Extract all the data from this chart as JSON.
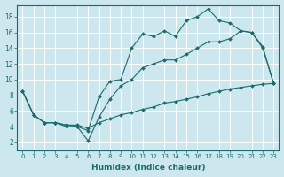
{
  "xlabel": "Humidex (Indice chaleur)",
  "xlim": [
    -0.5,
    23.5
  ],
  "ylim": [
    1,
    19.5
  ],
  "xticks": [
    0,
    1,
    2,
    3,
    4,
    5,
    6,
    7,
    8,
    9,
    10,
    11,
    12,
    13,
    14,
    15,
    16,
    17,
    18,
    19,
    20,
    21,
    22,
    23
  ],
  "yticks": [
    2,
    4,
    6,
    8,
    10,
    12,
    14,
    16,
    18
  ],
  "background_color": "#cce8ee",
  "grid_color": "#ffffff",
  "line_color": "#1a6b6b",
  "curves": [
    {
      "x": [
        0,
        1,
        2,
        3,
        4,
        5,
        6,
        7,
        8,
        9,
        10,
        11,
        12,
        13,
        14,
        15,
        16,
        17,
        18,
        19,
        20,
        21,
        22,
        23
      ],
      "y": [
        8.5,
        5.5,
        4.5,
        4.5,
        4.0,
        4.0,
        3.5,
        7.8,
        9.8,
        10.0,
        14.0,
        15.8,
        15.5,
        16.2,
        15.5,
        17.5,
        18.0,
        19.0,
        17.5,
        17.2,
        16.2,
        16.0,
        14.0,
        9.5
      ]
    },
    {
      "x": [
        0,
        1,
        2,
        3,
        4,
        5,
        6,
        7,
        8,
        9,
        10,
        11,
        12,
        13,
        14,
        15,
        16,
        17,
        18,
        19,
        20,
        21,
        22,
        23
      ],
      "y": [
        8.5,
        5.5,
        4.5,
        4.5,
        4.2,
        4.0,
        2.2,
        5.2,
        7.5,
        9.2,
        10.0,
        11.5,
        12.0,
        12.5,
        12.5,
        13.2,
        14.0,
        14.8,
        14.8,
        15.2,
        16.2,
        16.0,
        14.2,
        9.5
      ]
    },
    {
      "x": [
        0,
        1,
        2,
        3,
        4,
        5,
        6,
        7,
        8,
        9,
        10,
        11,
        12,
        13,
        14,
        15,
        16,
        17,
        18,
        19,
        20,
        21,
        22,
        23
      ],
      "y": [
        8.5,
        5.5,
        4.5,
        4.5,
        4.2,
        4.2,
        3.8,
        4.5,
        5.0,
        5.5,
        5.8,
        6.2,
        6.5,
        7.0,
        7.2,
        7.5,
        7.8,
        8.2,
        8.5,
        8.8,
        9.0,
        9.2,
        9.4,
        9.5
      ]
    }
  ]
}
